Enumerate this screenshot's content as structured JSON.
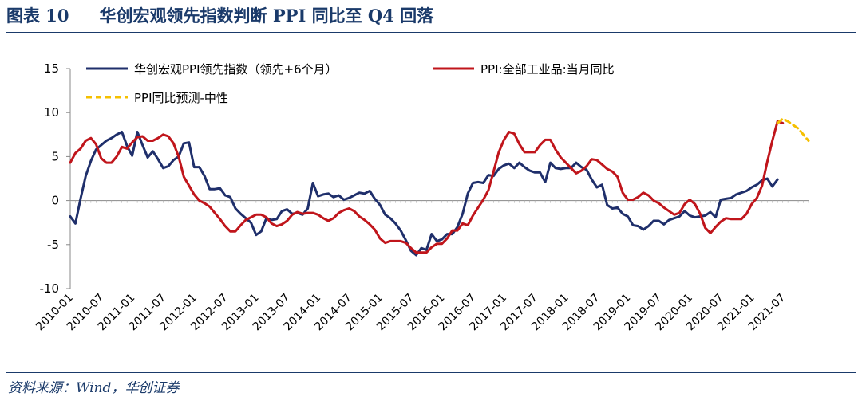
{
  "header": {
    "figure_no": "图表 10",
    "title": "华创宏观领先指数判断 PPI 同比至 Q4 回落"
  },
  "source": "资料来源：Wind，华创证券",
  "colors": {
    "lead": "#1f2f6b",
    "ppi": "#c0151b",
    "forecast": "#f5c000",
    "title": "#1a3a6a"
  },
  "chart_data": {
    "type": "line",
    "title": "华创宏观领先指数判断 PPI 同比至 Q4 回落",
    "xlabel": "",
    "ylabel": "",
    "ylim": [
      -10,
      15
    ],
    "yticks": [
      -10,
      -5,
      0,
      5,
      10,
      15
    ],
    "x_start": "2010-01",
    "x_end": "2021-12",
    "xticks": [
      "2010-01",
      "2010-07",
      "2011-01",
      "2011-07",
      "2012-01",
      "2012-07",
      "2013-01",
      "2013-07",
      "2014-01",
      "2014-07",
      "2015-01",
      "2015-07",
      "2016-01",
      "2016-07",
      "2017-01",
      "2017-07",
      "2018-01",
      "2018-07",
      "2019-01",
      "2019-07",
      "2020-01",
      "2020-07",
      "2021-01",
      "2021-07"
    ],
    "legend_placement": "top",
    "series": [
      {
        "name": "华创宏观PPI领先指数（领先+6个月）",
        "style": "solid",
        "color_key": "lead",
        "x_start_index": 0,
        "values": [
          -1.8,
          -2.6,
          0.2,
          2.8,
          4.5,
          5.8,
          6.3,
          6.8,
          7.1,
          7.5,
          7.8,
          6.2,
          5.1,
          7.8,
          6.3,
          4.9,
          5.6,
          4.7,
          3.7,
          3.9,
          4.6,
          5.0,
          6.5,
          6.6,
          3.8,
          3.8,
          2.8,
          1.3,
          1.3,
          1.4,
          0.6,
          0.4,
          -0.9,
          -1.5,
          -2.0,
          -2.5,
          -3.9,
          -3.5,
          -2.0,
          -2.2,
          -2.1,
          -1.2,
          -1.0,
          -1.5,
          -1.4,
          -1.6,
          -0.9,
          2.0,
          0.5,
          0.7,
          0.8,
          0.4,
          0.6,
          0.1,
          0.3,
          0.6,
          0.9,
          0.8,
          1.1,
          0.2,
          -0.5,
          -1.6,
          -2.0,
          -2.6,
          -3.4,
          -4.5,
          -5.7,
          -6.2,
          -5.4,
          -5.6,
          -3.8,
          -4.6,
          -4.4,
          -3.8,
          -3.8,
          -3.0,
          -1.5,
          0.8,
          2.0,
          2.1,
          2.0,
          2.9,
          2.8,
          3.6,
          4.0,
          4.2,
          3.7,
          4.3,
          3.8,
          3.4,
          3.2,
          3.2,
          2.1,
          4.3,
          3.7,
          3.6,
          3.7,
          3.7,
          4.3,
          3.8,
          3.5,
          2.4,
          1.5,
          1.8,
          -0.5,
          -0.9,
          -0.8,
          -1.5,
          -1.8,
          -2.8,
          -2.9,
          -3.3,
          -2.9,
          -2.3,
          -2.3,
          -2.7,
          -2.2,
          -2.0,
          -1.8,
          -1.2,
          -1.7,
          -1.9,
          -1.8,
          -1.7,
          -1.3,
          -1.9,
          0.1,
          0.2,
          0.3,
          0.7,
          0.9,
          1.1,
          1.5,
          1.8,
          2.3,
          2.5,
          1.6,
          2.4
        ]
      },
      {
        "name": "PPI:全部工业品:当月同比",
        "style": "solid",
        "color_key": "ppi",
        "x_start_index": 0,
        "values": [
          4.3,
          5.4,
          5.9,
          6.8,
          7.1,
          6.4,
          4.8,
          4.3,
          4.3,
          5.0,
          6.1,
          5.9,
          6.6,
          7.2,
          7.3,
          6.8,
          6.8,
          7.1,
          7.5,
          7.3,
          6.5,
          5.0,
          2.7,
          1.7,
          0.7,
          0.0,
          -0.3,
          -0.7,
          -1.4,
          -2.1,
          -2.9,
          -3.5,
          -3.5,
          -2.8,
          -2.2,
          -1.9,
          -1.6,
          -1.6,
          -1.9,
          -2.6,
          -2.9,
          -2.7,
          -2.3,
          -1.6,
          -1.3,
          -1.5,
          -1.4,
          -1.4,
          -1.6,
          -2.0,
          -2.3,
          -2.0,
          -1.4,
          -1.1,
          -0.9,
          -1.2,
          -1.8,
          -2.2,
          -2.7,
          -3.3,
          -4.3,
          -4.8,
          -4.6,
          -4.6,
          -4.6,
          -4.8,
          -5.4,
          -5.9,
          -5.9,
          -5.9,
          -5.3,
          -4.9,
          -4.9,
          -4.3,
          -3.4,
          -3.4,
          -2.6,
          -2.8,
          -1.7,
          -0.8,
          0.1,
          1.2,
          3.3,
          5.5,
          6.9,
          7.8,
          7.6,
          6.4,
          5.5,
          5.5,
          5.5,
          6.3,
          6.9,
          6.9,
          5.8,
          4.9,
          4.3,
          3.7,
          3.1,
          3.4,
          3.9,
          4.7,
          4.6,
          4.1,
          3.6,
          3.3,
          2.7,
          0.9,
          0.1,
          0.1,
          0.4,
          0.9,
          0.6,
          0.0,
          -0.3,
          -0.8,
          -1.2,
          -1.6,
          -1.4,
          -0.4,
          0.1,
          -0.4,
          -1.5,
          -3.1,
          -3.7,
          -3.0,
          -2.4,
          -2.0,
          -2.1,
          -2.1,
          -2.1,
          -1.5,
          -0.4,
          0.3,
          1.7,
          4.4,
          6.8,
          9.0,
          8.8
        ]
      },
      {
        "name": "PPI同比预测-中性",
        "style": "dashed",
        "color_key": "forecast",
        "x_start_index": 137,
        "values": [
          8.8,
          9.3,
          9.0,
          8.6,
          8.2,
          7.5,
          6.8
        ]
      }
    ]
  }
}
